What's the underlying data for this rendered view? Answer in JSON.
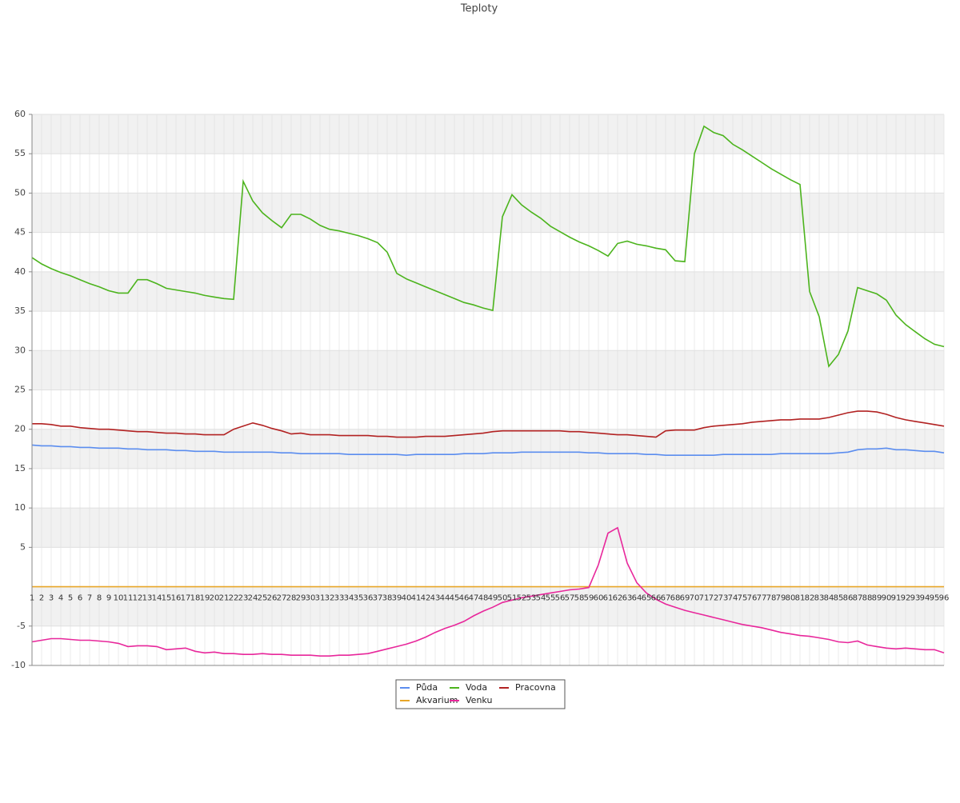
{
  "chart_data": {
    "type": "line",
    "title": "Teploty",
    "categories": [
      1,
      2,
      3,
      4,
      5,
      6,
      7,
      8,
      9,
      10,
      11,
      12,
      13,
      14,
      15,
      16,
      17,
      18,
      19,
      20,
      21,
      22,
      23,
      24,
      25,
      26,
      27,
      28,
      29,
      30,
      31,
      32,
      33,
      34,
      35,
      36,
      37,
      38,
      39,
      40,
      41,
      42,
      43,
      44,
      45,
      46,
      47,
      48,
      49,
      50,
      51,
      52,
      53,
      54,
      55,
      56,
      57,
      58,
      59,
      60,
      61,
      62,
      63,
      64,
      65,
      66,
      67,
      68,
      69,
      70,
      71,
      72,
      73,
      74,
      75,
      76,
      77,
      78,
      79,
      80,
      81,
      82,
      83,
      84,
      85,
      86,
      87,
      88,
      89,
      90,
      91,
      92,
      93,
      94,
      95,
      96
    ],
    "ylim": [
      -10,
      60
    ],
    "yticks": [
      60,
      55,
      50,
      45,
      40,
      35,
      30,
      25,
      20,
      15,
      10,
      5,
      -5,
      -10
    ],
    "grid": true,
    "series": [
      {
        "name": "Půda",
        "color": "#5b8def",
        "values": [
          18.0,
          17.9,
          17.9,
          17.8,
          17.8,
          17.7,
          17.7,
          17.6,
          17.6,
          17.6,
          17.5,
          17.5,
          17.4,
          17.4,
          17.4,
          17.3,
          17.3,
          17.2,
          17.2,
          17.2,
          17.1,
          17.1,
          17.1,
          17.1,
          17.1,
          17.1,
          17.0,
          17.0,
          16.9,
          16.9,
          16.9,
          16.9,
          16.9,
          16.8,
          16.8,
          16.8,
          16.8,
          16.8,
          16.8,
          16.7,
          16.8,
          16.8,
          16.8,
          16.8,
          16.8,
          16.9,
          16.9,
          16.9,
          17.0,
          17.0,
          17.0,
          17.1,
          17.1,
          17.1,
          17.1,
          17.1,
          17.1,
          17.1,
          17.0,
          17.0,
          16.9,
          16.9,
          16.9,
          16.9,
          16.8,
          16.8,
          16.7,
          16.7,
          16.7,
          16.7,
          16.7,
          16.7,
          16.8,
          16.8,
          16.8,
          16.8,
          16.8,
          16.8,
          16.9,
          16.9,
          16.9,
          16.9,
          16.9,
          16.9,
          17.0,
          17.1,
          17.4,
          17.5,
          17.5,
          17.6,
          17.4,
          17.4,
          17.3,
          17.2,
          17.2,
          17.0
        ]
      },
      {
        "name": "Voda",
        "color": "#4cb41d",
        "values": [
          41.8,
          41.0,
          40.4,
          39.9,
          39.5,
          39.0,
          38.5,
          38.1,
          37.6,
          37.3,
          37.3,
          39.0,
          39.0,
          38.5,
          37.9,
          37.7,
          37.5,
          37.3,
          37.0,
          36.8,
          36.6,
          36.5,
          51.5,
          49.0,
          47.5,
          46.5,
          45.6,
          47.3,
          47.3,
          46.7,
          45.9,
          45.4,
          45.2,
          44.9,
          44.6,
          44.2,
          43.7,
          42.5,
          39.8,
          39.1,
          38.6,
          38.1,
          37.6,
          37.1,
          36.6,
          36.1,
          35.8,
          35.4,
          35.1,
          47.0,
          49.8,
          48.5,
          47.6,
          46.8,
          45.8,
          45.1,
          44.4,
          43.8,
          43.3,
          42.7,
          42.0,
          43.6,
          43.9,
          43.5,
          43.3,
          43.0,
          42.8,
          41.4,
          41.3,
          55.0,
          58.5,
          57.7,
          57.3,
          56.2,
          55.5,
          54.7,
          53.9,
          53.1,
          52.4,
          51.7,
          51.1,
          37.5,
          34.3,
          28.0,
          29.5,
          32.5,
          38.0,
          37.6,
          37.2,
          36.4,
          34.5,
          33.3,
          32.4,
          31.5,
          30.8,
          30.5
        ]
      },
      {
        "name": "Pracovna",
        "color": "#b22222",
        "values": [
          20.7,
          20.7,
          20.6,
          20.4,
          20.4,
          20.2,
          20.1,
          20.0,
          20.0,
          19.9,
          19.8,
          19.7,
          19.7,
          19.6,
          19.5,
          19.5,
          19.4,
          19.4,
          19.3,
          19.3,
          19.3,
          20.0,
          20.4,
          20.8,
          20.5,
          20.1,
          19.8,
          19.4,
          19.5,
          19.3,
          19.3,
          19.3,
          19.2,
          19.2,
          19.2,
          19.2,
          19.1,
          19.1,
          19.0,
          19.0,
          19.0,
          19.1,
          19.1,
          19.1,
          19.2,
          19.3,
          19.4,
          19.5,
          19.7,
          19.8,
          19.8,
          19.8,
          19.8,
          19.8,
          19.8,
          19.8,
          19.7,
          19.7,
          19.6,
          19.5,
          19.4,
          19.3,
          19.3,
          19.2,
          19.1,
          19.0,
          19.8,
          19.9,
          19.9,
          19.9,
          20.2,
          20.4,
          20.5,
          20.6,
          20.7,
          20.9,
          21.0,
          21.1,
          21.2,
          21.2,
          21.3,
          21.3,
          21.3,
          21.5,
          21.8,
          22.1,
          22.3,
          22.3,
          22.2,
          21.9,
          21.5,
          21.2,
          21.0,
          20.8,
          20.6,
          20.4
        ]
      },
      {
        "name": "Akvarium",
        "color": "#e8a628",
        "values": [
          0,
          0,
          0,
          0,
          0,
          0,
          0,
          0,
          0,
          0,
          0,
          0,
          0,
          0,
          0,
          0,
          0,
          0,
          0,
          0,
          0,
          0,
          0,
          0,
          0,
          0,
          0,
          0,
          0,
          0,
          0,
          0,
          0,
          0,
          0,
          0,
          0,
          0,
          0,
          0,
          0,
          0,
          0,
          0,
          0,
          0,
          0,
          0,
          0,
          0,
          0,
          0,
          0,
          0,
          0,
          0,
          0,
          0,
          0,
          0,
          0,
          0,
          0,
          0,
          0,
          0,
          0,
          0,
          0,
          0,
          0,
          0,
          0,
          0,
          0,
          0,
          0,
          0,
          0,
          0,
          0,
          0,
          0,
          0,
          0,
          0,
          0,
          0,
          0,
          0,
          0,
          0,
          0,
          0,
          0,
          0
        ]
      },
      {
        "name": "Venku",
        "color": "#e8279b",
        "values": [
          -7.0,
          -6.8,
          -6.6,
          -6.6,
          -6.7,
          -6.8,
          -6.8,
          -6.9,
          -7.0,
          -7.2,
          -7.6,
          -7.5,
          -7.5,
          -7.6,
          -8.0,
          -7.9,
          -7.8,
          -8.2,
          -8.4,
          -8.3,
          -8.5,
          -8.5,
          -8.6,
          -8.6,
          -8.5,
          -8.6,
          -8.6,
          -8.7,
          -8.7,
          -8.7,
          -8.8,
          -8.8,
          -8.7,
          -8.7,
          -8.6,
          -8.5,
          -8.2,
          -7.9,
          -7.6,
          -7.3,
          -6.9,
          -6.4,
          -5.8,
          -5.3,
          -4.9,
          -4.4,
          -3.7,
          -3.1,
          -2.6,
          -2.0,
          -1.7,
          -1.4,
          -1.2,
          -1.0,
          -0.8,
          -0.6,
          -0.4,
          -0.3,
          -0.1,
          2.8,
          6.8,
          7.5,
          3.0,
          0.5,
          -0.8,
          -1.6,
          -2.2,
          -2.6,
          -3.0,
          -3.3,
          -3.6,
          -3.9,
          -4.2,
          -4.5,
          -4.8,
          -5.0,
          -5.2,
          -5.5,
          -5.8,
          -6.0,
          -6.2,
          -6.3,
          -6.5,
          -6.7,
          -7.0,
          -7.1,
          -6.9,
          -7.4,
          -7.6,
          -7.8,
          -7.9,
          -7.8,
          -7.9,
          -8.0,
          -8.0,
          -8.4
        ]
      }
    ]
  }
}
